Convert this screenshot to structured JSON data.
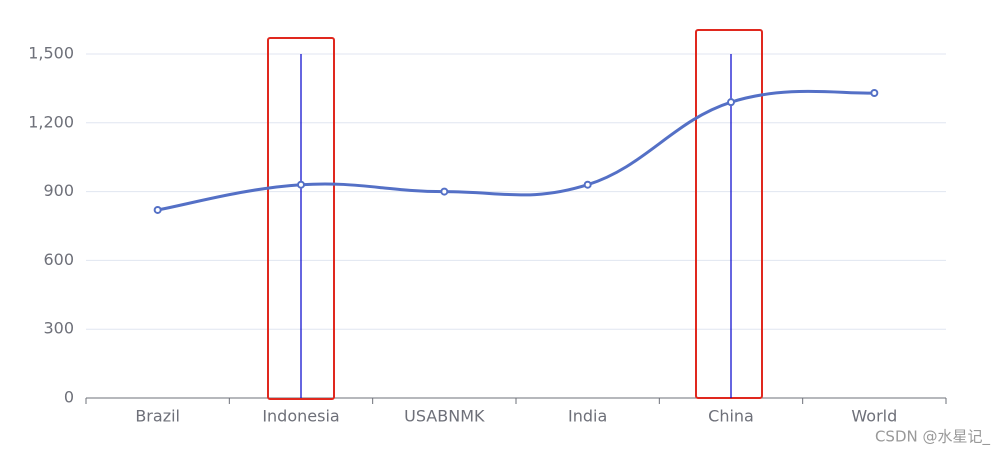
{
  "chart_data": {
    "type": "line",
    "categories": [
      "Brazil",
      "Indonesia",
      "USABNMK",
      "India",
      "China",
      "World"
    ],
    "series": [
      {
        "name": "series",
        "color": "#5470c6",
        "values": [
          820,
          930,
          900,
          930,
          1290,
          1330
        ]
      }
    ],
    "ylim": [
      0,
      1500
    ],
    "yticks": [
      0,
      300,
      600,
      900,
      {
        "value": 1200,
        "label": "1,200"
      },
      {
        "value": 1500,
        "label": "1,500"
      }
    ],
    "grid": true,
    "smooth": true,
    "mark_lines": [
      {
        "x_index": 1,
        "y": [
          0,
          1500
        ],
        "color": "#0000cc"
      },
      {
        "x_index": 4,
        "y": [
          0,
          1500
        ],
        "color": "#0000cc"
      }
    ]
  },
  "watermark": "CSDN @水星记_"
}
